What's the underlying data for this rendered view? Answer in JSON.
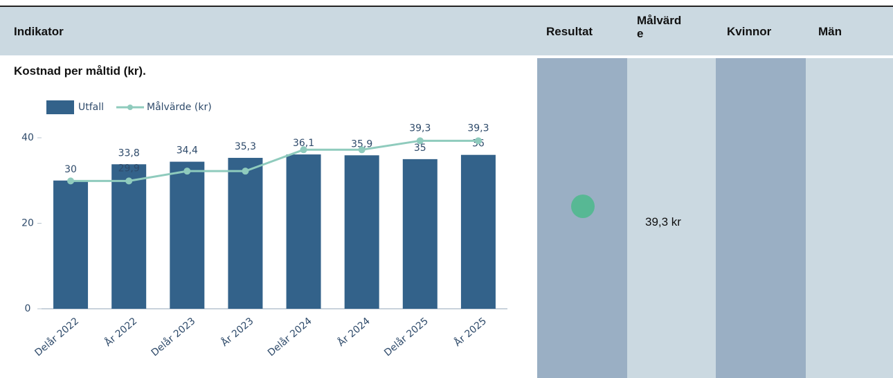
{
  "table": {
    "columns": [
      "Indikator",
      "Resultat",
      "Målvärde",
      "Kvinnor",
      "Män"
    ],
    "row": {
      "indicator": "Kostnad per måltid (kr).",
      "target": "39,3 kr"
    }
  },
  "chart_data": {
    "type": "bar",
    "categories": [
      "Delår 2022",
      "År 2022",
      "Delår 2023",
      "År 2023",
      "Delår 2024",
      "År 2024",
      "Delår 2025",
      "År 2025"
    ],
    "series": [
      {
        "name": "Utfall",
        "type": "bar",
        "color": "#33628a",
        "values": [
          30,
          33.8,
          34.4,
          35.3,
          36.1,
          35.9,
          35,
          36
        ],
        "value_labels": [
          "30",
          "33,8",
          "34,4",
          "35,3",
          "36,1",
          "35,9",
          "35",
          "36"
        ]
      },
      {
        "name": "Målvärde (kr)",
        "type": "line",
        "color": "#8fcbbd",
        "values": [
          29.9,
          29.9,
          32.2,
          32.2,
          37.2,
          37.2,
          39.3,
          39.3
        ],
        "value_labels": [
          null,
          "29,9",
          null,
          null,
          null,
          null,
          "39,3",
          "39,3"
        ]
      }
    ],
    "ylim": [
      0,
      40
    ],
    "yticks": [
      0,
      20,
      40
    ]
  }
}
